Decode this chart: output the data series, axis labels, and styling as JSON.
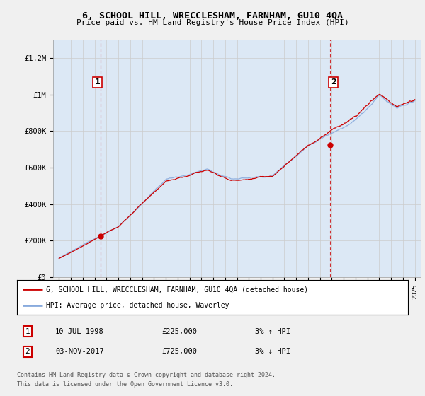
{
  "title": "6, SCHOOL HILL, WRECCLESHAM, FARNHAM, GU10 4QA",
  "subtitle": "Price paid vs. HM Land Registry's House Price Index (HPI)",
  "legend_line1": "6, SCHOOL HILL, WRECCLESHAM, FARNHAM, GU10 4QA (detached house)",
  "legend_line2": "HPI: Average price, detached house, Waverley",
  "annotation1_label": "1",
  "annotation1_date": "10-JUL-1998",
  "annotation1_price": "£225,000",
  "annotation1_hpi": "3% ↑ HPI",
  "annotation2_label": "2",
  "annotation2_date": "03-NOV-2017",
  "annotation2_price": "£725,000",
  "annotation2_hpi": "3% ↓ HPI",
  "footnote1": "Contains HM Land Registry data © Crown copyright and database right 2024.",
  "footnote2": "This data is licensed under the Open Government Licence v3.0.",
  "ylim": [
    0,
    1300000
  ],
  "yticks": [
    0,
    200000,
    400000,
    600000,
    800000,
    1000000,
    1200000
  ],
  "ytick_labels": [
    "£0",
    "£200K",
    "£400K",
    "£600K",
    "£800K",
    "£1M",
    "£1.2M"
  ],
  "line_color_red": "#cc0000",
  "line_color_blue": "#88aadd",
  "bg_color": "#f0f0f0",
  "plot_bg_color": "#dce8f5",
  "sale1_x": 1998.53,
  "sale1_y": 225000,
  "sale2_x": 2017.84,
  "sale2_y": 725000,
  "xmin": 1995,
  "xmax": 2025
}
